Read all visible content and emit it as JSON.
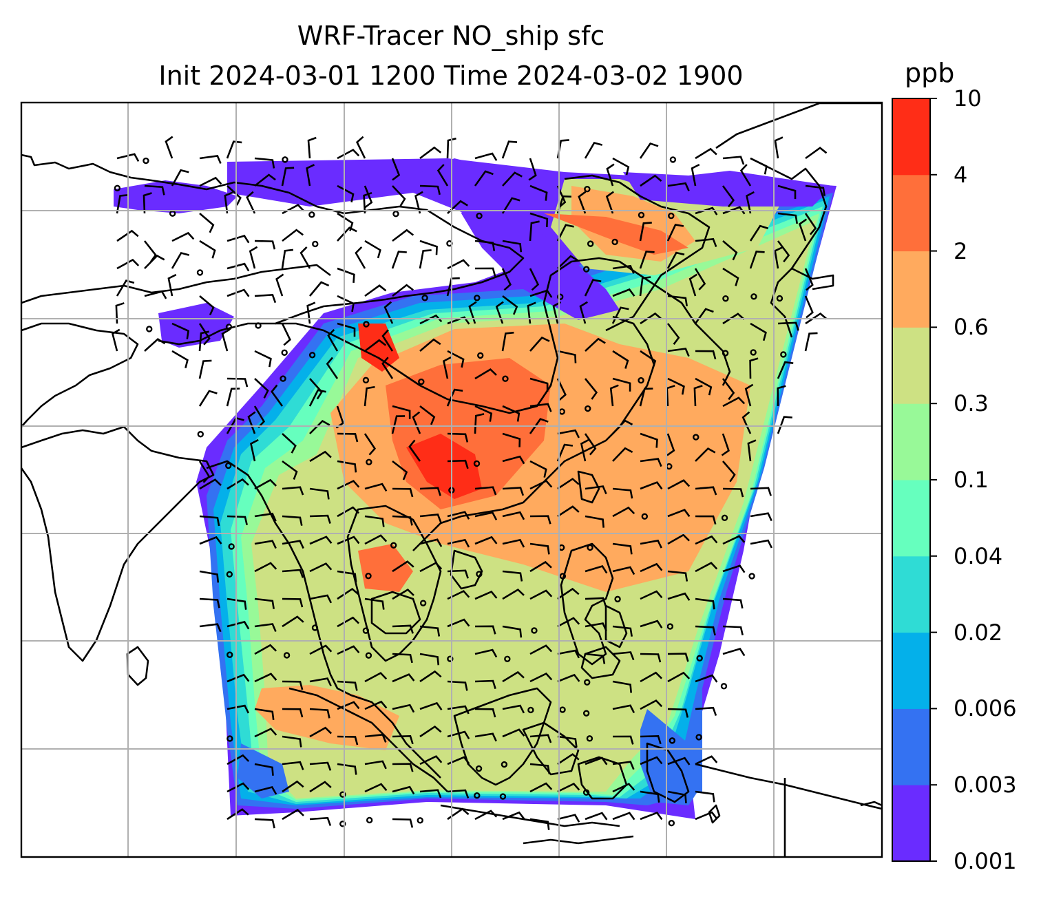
{
  "title": {
    "line1": "WRF-Tracer NO_ship sfc",
    "line2": "Init 2024-03-01 1200 Time 2024-03-02 1900"
  },
  "colorbar": {
    "unit": "ppb",
    "levels": [
      "0.001",
      "0.003",
      "0.006",
      "0.02",
      "0.04",
      "0.1",
      "0.3",
      "0.6",
      "2",
      "4",
      "10"
    ],
    "colors": [
      "#6a2cff",
      "#3472f2",
      "#04b0ea",
      "#2fdcd5",
      "#66ffbe",
      "#98f998",
      "#cde183",
      "#ffaa5e",
      "#ff6f3a",
      "#ff2d17"
    ]
  },
  "map": {
    "land_outline_color": "#000000",
    "gridline_color": "#b0b0b0",
    "wind_barb_color": "#000000"
  }
}
